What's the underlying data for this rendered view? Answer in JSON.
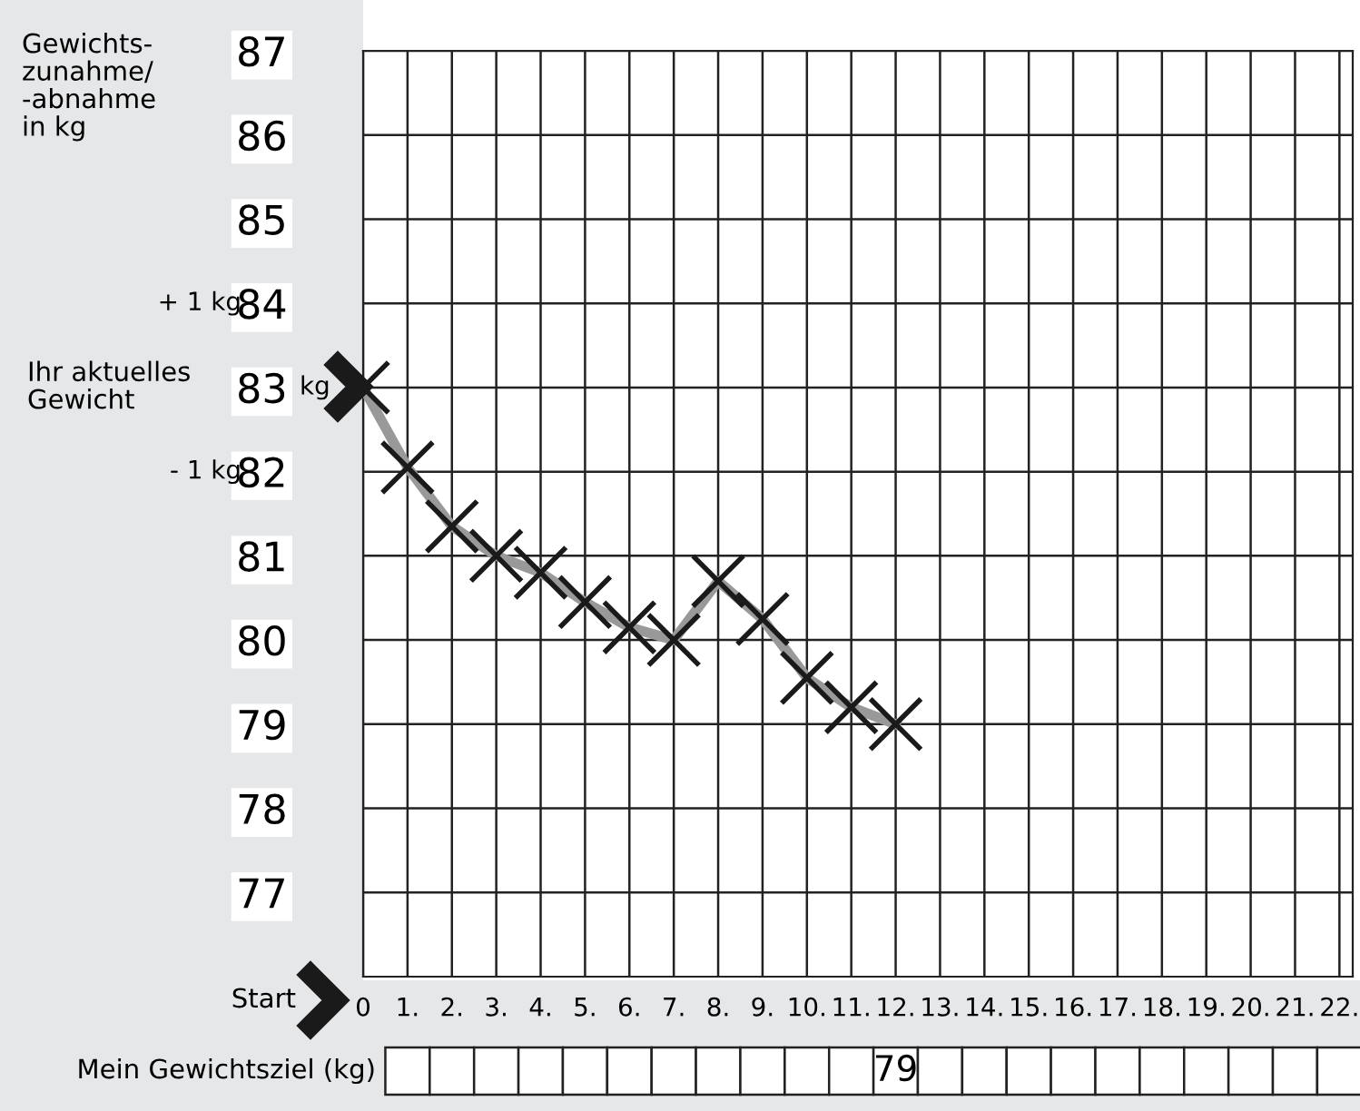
{
  "chart_data": {
    "type": "line",
    "ylabel": "Gewichts-\nzunahme/\n-abnahme\nin kg",
    "x": [
      0,
      1,
      2,
      3,
      4,
      5,
      6,
      7,
      8,
      9,
      10,
      11,
      12
    ],
    "series": [
      {
        "color": "#999999",
        "values": [
          83,
          82.05,
          81.35,
          81.0,
          80.8,
          80.45,
          80.15,
          80.0,
          80.7,
          80.25,
          79.55,
          79.2,
          79.0
        ]
      }
    ],
    "marker": "cross",
    "line_style": "solid",
    "grid": true,
    "xlim": [
      0,
      22.3
    ],
    "xticks": [
      0,
      {
        "value": 1,
        "label": "1."
      },
      {
        "value": 2,
        "label": "2."
      },
      {
        "value": 3,
        "label": "3."
      },
      {
        "value": 4,
        "label": "4."
      },
      {
        "value": 5,
        "label": "5."
      },
      {
        "value": 6,
        "label": "6."
      },
      {
        "value": 7,
        "label": "7."
      },
      {
        "value": 8,
        "label": "8."
      },
      {
        "value": 9,
        "label": "9."
      },
      {
        "value": 10,
        "label": "10."
      },
      {
        "value": 11,
        "label": "11."
      },
      {
        "value": 12,
        "label": "12."
      },
      {
        "value": 13,
        "label": "13."
      },
      {
        "value": 14,
        "label": "14."
      },
      {
        "value": 15,
        "label": "15."
      },
      {
        "value": 16,
        "label": "16."
      },
      {
        "value": 17,
        "label": "17."
      },
      {
        "value": 18,
        "label": "18."
      },
      {
        "value": 19,
        "label": "19."
      },
      {
        "value": 20,
        "label": "20."
      },
      {
        "value": 21,
        "label": "21."
      },
      {
        "value": 22,
        "label": "22."
      }
    ],
    "ylim": [
      76,
      87
    ],
    "yticks": [
      77,
      78,
      79,
      80,
      81,
      82,
      83,
      84,
      85,
      86,
      87
    ],
    "annotations": [
      "+ 1 kg",
      "Ihr aktuelles\nGewicht",
      "kg",
      "- 1 kg",
      "Start",
      "Mein Gewichtsziel (kg)",
      "79"
    ]
  }
}
